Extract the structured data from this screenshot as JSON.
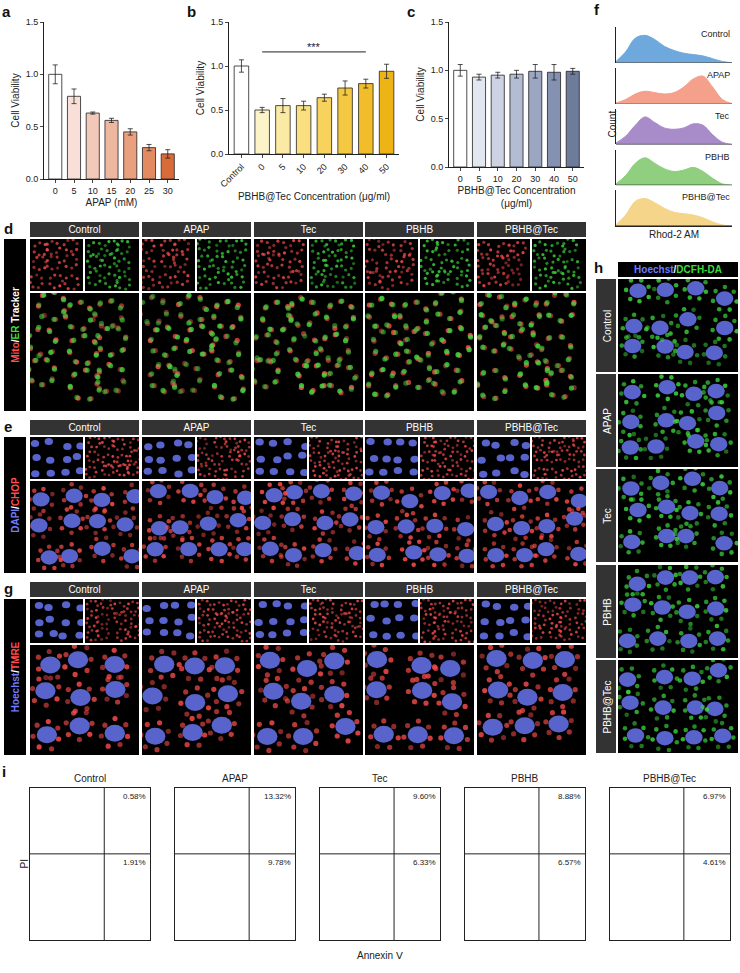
{
  "chart_data": [
    {
      "panel": "a",
      "type": "bar",
      "categories": [
        "0",
        "5",
        "10",
        "15",
        "20",
        "25",
        "30"
      ],
      "values": [
        1.0,
        0.79,
        0.63,
        0.56,
        0.45,
        0.3,
        0.24
      ],
      "errors": [
        0.09,
        0.07,
        0.01,
        0.02,
        0.03,
        0.03,
        0.04
      ],
      "colors": [
        "#ffffff",
        "#f8dfd8",
        "#f2c9b8",
        "#eeb8a0",
        "#e8a07e",
        "#e28a60",
        "#d96b3b"
      ],
      "xlabel": "APAP (mM)",
      "ylabel": "Cell Viability",
      "ylim": [
        0,
        1.5
      ],
      "yticks": [
        {
          "value": 0,
          "label": "0.0"
        },
        0.5,
        {
          "value": 1,
          "label": "1.0"
        },
        1.5
      ]
    },
    {
      "panel": "b",
      "type": "bar",
      "categories": [
        "Control",
        "0",
        "5",
        "10",
        "20",
        "30",
        "40",
        "50"
      ],
      "values": [
        1.0,
        0.5,
        0.55,
        0.55,
        0.64,
        0.75,
        0.8,
        0.94
      ],
      "errors": [
        0.07,
        0.03,
        0.08,
        0.05,
        0.04,
        0.08,
        0.05,
        0.08
      ],
      "colors": [
        "#ffffff",
        "#fdf3c8",
        "#fbeaa4",
        "#f9df80",
        "#f7d35e",
        "#f5c842",
        "#f2bd2a",
        "#eeb416"
      ],
      "xlabel": "PBHB@Tec Concentration (μg/ml)",
      "ylabel": "Cell Viability",
      "ylim": [
        0,
        1.5
      ],
      "yticks": [
        {
          "value": 0,
          "label": "0.0"
        },
        0.5,
        {
          "value": 1,
          "label": "1.0"
        },
        1.5
      ],
      "comparisons": [
        {
          "from": "0",
          "to": "40",
          "label": "***"
        }
      ]
    },
    {
      "panel": "c",
      "type": "bar",
      "categories": [
        "0",
        "5",
        "10",
        "20",
        "30",
        "40",
        "50"
      ],
      "values": [
        1.0,
        0.93,
        0.95,
        0.96,
        0.99,
        0.98,
        0.99
      ],
      "errors": [
        0.06,
        0.03,
        0.03,
        0.04,
        0.07,
        0.08,
        0.03
      ],
      "colors": [
        "#ffffff",
        "#e3e7f0",
        "#cdd3e2",
        "#b3bcd2",
        "#9aa6c2",
        "#8591b0",
        "#6e7c9c"
      ],
      "xlabel": "PBHB@Tec Concentration (μg/ml)",
      "ylabel": "Cell Viability",
      "ylim": [
        0,
        1.5
      ],
      "yticks": [
        {
          "value": 0,
          "label": "0.0"
        },
        0.5,
        {
          "value": 1,
          "label": "1.0"
        },
        1.5
      ]
    },
    {
      "panel": "f",
      "type": "area",
      "x": [
        0,
        1,
        2,
        3,
        4,
        5,
        6,
        7,
        8,
        9,
        10,
        11,
        12
      ],
      "xlabel": "Rhod-2 AM",
      "ylabel": "Count",
      "xlim": [
        0,
        12
      ],
      "ylim": [
        0,
        1.3
      ],
      "tick_labels": false,
      "series": [
        {
          "name": "Control",
          "color": "#6fa8dc",
          "values": [
            0.05,
            0.4,
            0.9,
            1.0,
            0.85,
            0.6,
            0.45,
            0.35,
            0.3,
            0.25,
            0.15,
            0.05,
            0.0
          ]
        },
        {
          "name": "APAP",
          "color": "#f4a08a",
          "values": [
            0.02,
            0.15,
            0.35,
            0.45,
            0.4,
            0.35,
            0.4,
            0.6,
            0.9,
            1.0,
            0.6,
            0.15,
            0.0
          ]
        },
        {
          "name": "Tec",
          "color": "#a88bc9",
          "values": [
            0.05,
            0.3,
            0.7,
            1.0,
            0.8,
            0.6,
            0.55,
            0.6,
            0.75,
            0.7,
            0.35,
            0.08,
            0.0
          ]
        },
        {
          "name": "PBHB",
          "color": "#8fcf7f",
          "values": [
            0.05,
            0.35,
            0.8,
            1.0,
            0.8,
            0.6,
            0.5,
            0.55,
            0.65,
            0.5,
            0.25,
            0.05,
            0.0
          ]
        },
        {
          "name": "PBHB@Tec",
          "color": "#f5d58a",
          "values": [
            0.05,
            0.4,
            0.9,
            1.0,
            0.85,
            0.65,
            0.5,
            0.45,
            0.4,
            0.3,
            0.15,
            0.04,
            0.0
          ]
        }
      ]
    },
    {
      "panel": "i",
      "type": "quadrant",
      "xlabel": "Annexin Ⅴ",
      "ylabel": "PI",
      "xlim": [
        0,
        6
      ],
      "ylim": [
        0,
        6
      ],
      "gate": {
        "x": 3.7,
        "y": 3.4
      },
      "tick_labels": false,
      "plots": [
        {
          "title": "Control",
          "upper_right": 0.58,
          "lower_right": 1.91,
          "value_labels": [
            "0.58%",
            "1.91%"
          ]
        },
        {
          "title": "APAP",
          "upper_right": 13.32,
          "lower_right": 9.78,
          "value_labels": [
            "13.32%",
            "9.78%"
          ]
        },
        {
          "title": "Tec",
          "upper_right": 9.6,
          "lower_right": 6.33,
          "value_labels": [
            "9.60%",
            "6.33%"
          ]
        },
        {
          "title": "PBHB",
          "upper_right": 8.88,
          "lower_right": 6.57,
          "value_labels": [
            "8.88%",
            "6.57%"
          ]
        },
        {
          "title": "PBHB@Tec",
          "upper_right": 6.97,
          "lower_right": 4.61,
          "value_labels": [
            "6.97%",
            "4.61%"
          ]
        }
      ]
    }
  ],
  "image_panels": {
    "columns": [
      "Control",
      "APAP",
      "Tec",
      "PBHB",
      "PBHB@Tec"
    ],
    "column_layout": [
      {
        "panel": "d",
        "stain": [
          {
            "text": "Mito",
            "color": "#ff4d4d"
          },
          {
            "text": "/",
            "color": "#ffffff"
          },
          {
            "text": "ER",
            "color": "#3ddc3d"
          },
          {
            "text": " Tracker",
            "color": "#ffffff"
          }
        ]
      },
      {
        "panel": "e",
        "stain": [
          {
            "text": "DAPI",
            "color": "#6f7cff"
          },
          {
            "text": "/",
            "color": "#ffffff"
          },
          {
            "text": "CHOP",
            "color": "#ff4d4d"
          }
        ]
      },
      {
        "panel": "g",
        "stain": [
          {
            "text": "Hoechst",
            "color": "#6f7cff"
          },
          {
            "text": "/",
            "color": "#ffffff"
          },
          {
            "text": "TMRE",
            "color": "#ff4d4d"
          }
        ]
      }
    ],
    "row_layout": {
      "panel": "h",
      "stain": [
        {
          "text": "Hoechst",
          "color": "#6f7cff"
        },
        {
          "text": "/",
          "color": "#ffffff"
        },
        {
          "text": "DCFH-DA",
          "color": "#3ddc3d"
        }
      ]
    }
  }
}
